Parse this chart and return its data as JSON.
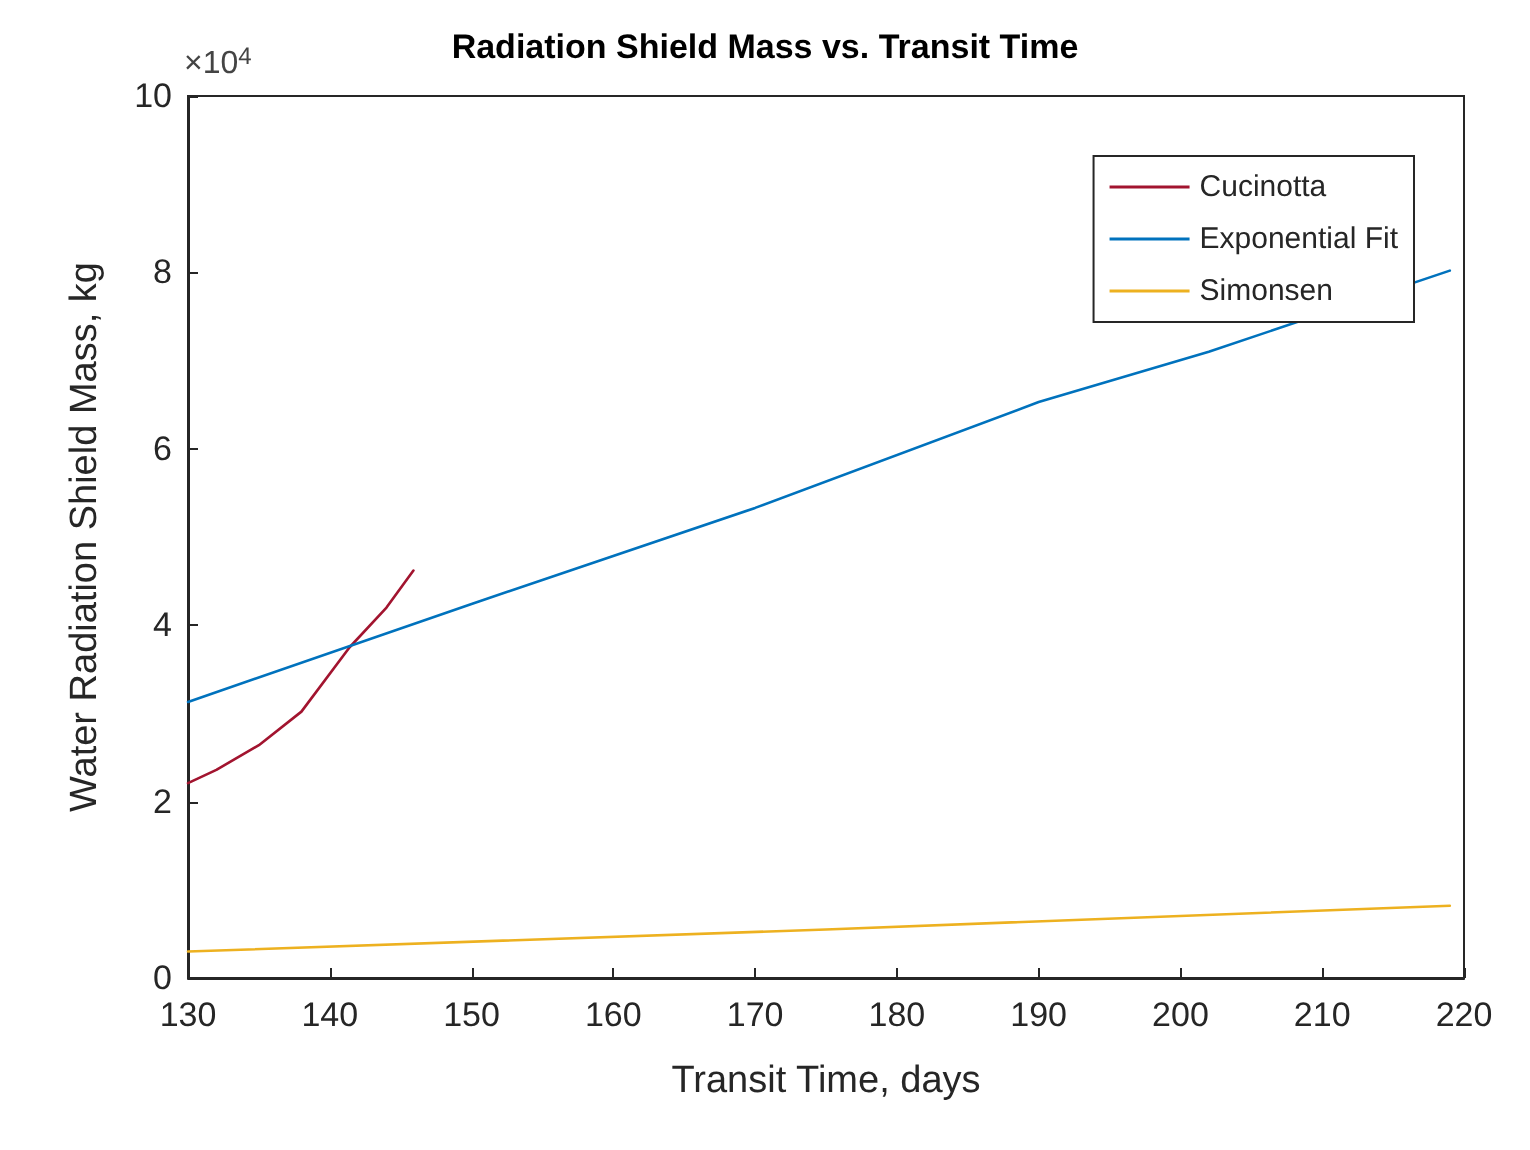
{
  "chart_data": {
    "type": "line",
    "title": "Radiation Shield Mass vs. Transit Time",
    "xlabel": "Transit Time, days",
    "ylabel": "Water Radiation Shield Mass, kg",
    "annotations": [
      "×10$^{4}$"
    ],
    "xlim": [
      130,
      220
    ],
    "xticks": [
      130,
      140,
      150,
      160,
      170,
      180,
      190,
      200,
      210,
      220
    ],
    "ylim": [
      0,
      10
    ],
    "yticks": [
      0,
      2,
      4,
      6,
      8,
      10
    ],
    "grid": false,
    "legend": "top right",
    "marker": "none",
    "line_style": "solid",
    "series": [
      {
        "name": "Cucinotta",
        "color": "#a2142f",
        "x": [
          130,
          132,
          135,
          138,
          141.4,
          144,
          145.9
        ],
        "values": [
          2.21,
          2.36,
          2.64,
          3.02,
          3.75,
          4.2,
          4.62
        ]
      },
      {
        "name": "Exponential Fit",
        "color": "#0072bd",
        "x": [
          130,
          150,
          170,
          190,
          202,
          219
        ],
        "values": [
          3.13,
          4.24,
          5.33,
          6.53,
          7.1,
          8.02
        ]
      },
      {
        "name": "Simonsen",
        "color": "#edb120",
        "x": [
          130,
          175,
          219
        ],
        "values": [
          0.3,
          0.55,
          0.82
        ]
      }
    ]
  }
}
